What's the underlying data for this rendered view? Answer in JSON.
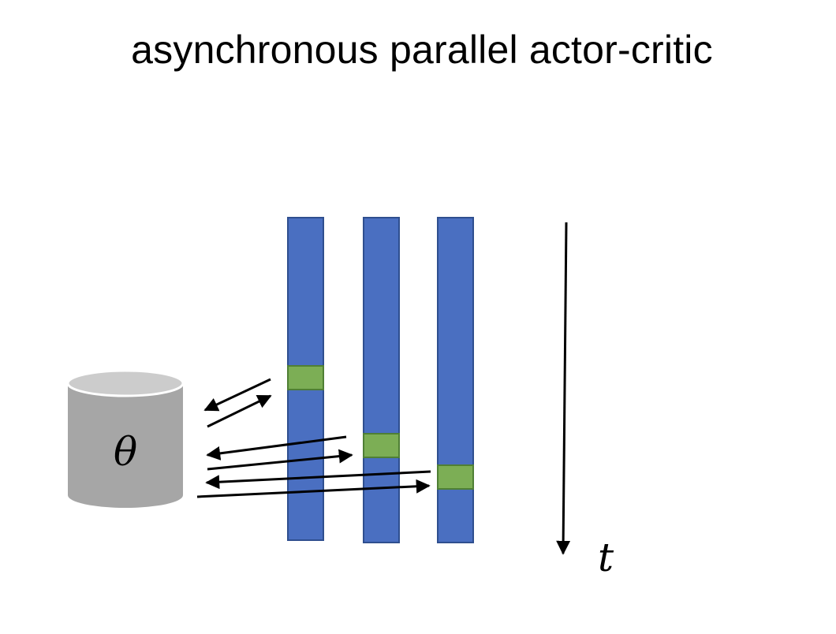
{
  "title": "asynchronous parallel actor-critic",
  "parameters": {
    "symbol": "θ",
    "body_color": "#a6a6a6",
    "top_color": "#cccccc"
  },
  "workers": {
    "bar_color": "#4a6fc1",
    "bar_border": "#2f4f8f",
    "update_color": "#7cae55",
    "update_border": "#4f7f35",
    "count": 3
  },
  "time_axis": {
    "label": "t"
  }
}
